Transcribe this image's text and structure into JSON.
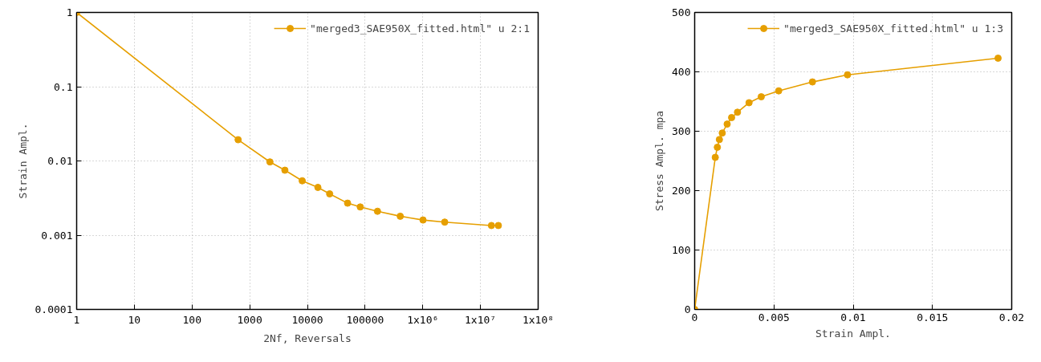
{
  "chart_data": [
    {
      "type": "line",
      "xlabel": "2Nf, Reversals",
      "ylabel": "Strain Ampl.",
      "log": "xy",
      "xlim": [
        1,
        100000000
      ],
      "ylim": [
        0.0001,
        1
      ],
      "xticks": [
        1,
        10,
        100,
        1000,
        10000,
        100000,
        {
          "value": 1000000,
          "label": "1x10⁶"
        },
        {
          "value": 10000000,
          "label": "1x10⁷"
        },
        {
          "value": 100000000,
          "label": "1x10⁸"
        }
      ],
      "yticks": [
        0.0001,
        0.001,
        0.01,
        0.1,
        1
      ],
      "grid": true,
      "legend": "top right",
      "marker": "circle",
      "line_style": "solid",
      "series": [
        {
          "name": "\"merged3_SAE950X_fitted.html\" u 2:1",
          "color": "#e69f00",
          "x": [
            1,
            630,
            2240,
            4070,
            8130,
            15200,
            24300,
            49700,
            82400,
            164000,
            407000,
            1010000,
            2400000,
            15500000,
            20400000
          ],
          "values": [
            1,
            0.0193,
            0.0097,
            0.0075,
            0.0054,
            0.0044,
            0.0036,
            0.0027,
            0.0024,
            0.0021,
            0.0018,
            0.0016,
            0.0015,
            0.00135,
            0.00135
          ]
        }
      ]
    },
    {
      "type": "line",
      "xlabel": "Strain Ampl.",
      "ylabel": "Stress Ampl. mpa",
      "xlim": [
        0,
        0.02
      ],
      "ylim": [
        0,
        500
      ],
      "xticks": [
        0,
        0.005,
        0.01,
        0.015,
        0.02
      ],
      "yticks": [
        0,
        100,
        200,
        300,
        400,
        500
      ],
      "grid": true,
      "legend": "top right",
      "marker": "circle",
      "line_style": "solid",
      "series": [
        {
          "name": "\"merged3_SAE950X_fitted.html\" u 1:3",
          "color": "#e69f00",
          "x": [
            0,
            0.0013,
            0.00143,
            0.00156,
            0.00174,
            0.00205,
            0.00233,
            0.0027,
            0.00343,
            0.0042,
            0.0053,
            0.00743,
            0.00964,
            0.01914
          ],
          "values": [
            0,
            256,
            273,
            286,
            297,
            312,
            323,
            332,
            348,
            358,
            368,
            383,
            395,
            423
          ]
        }
      ]
    }
  ]
}
